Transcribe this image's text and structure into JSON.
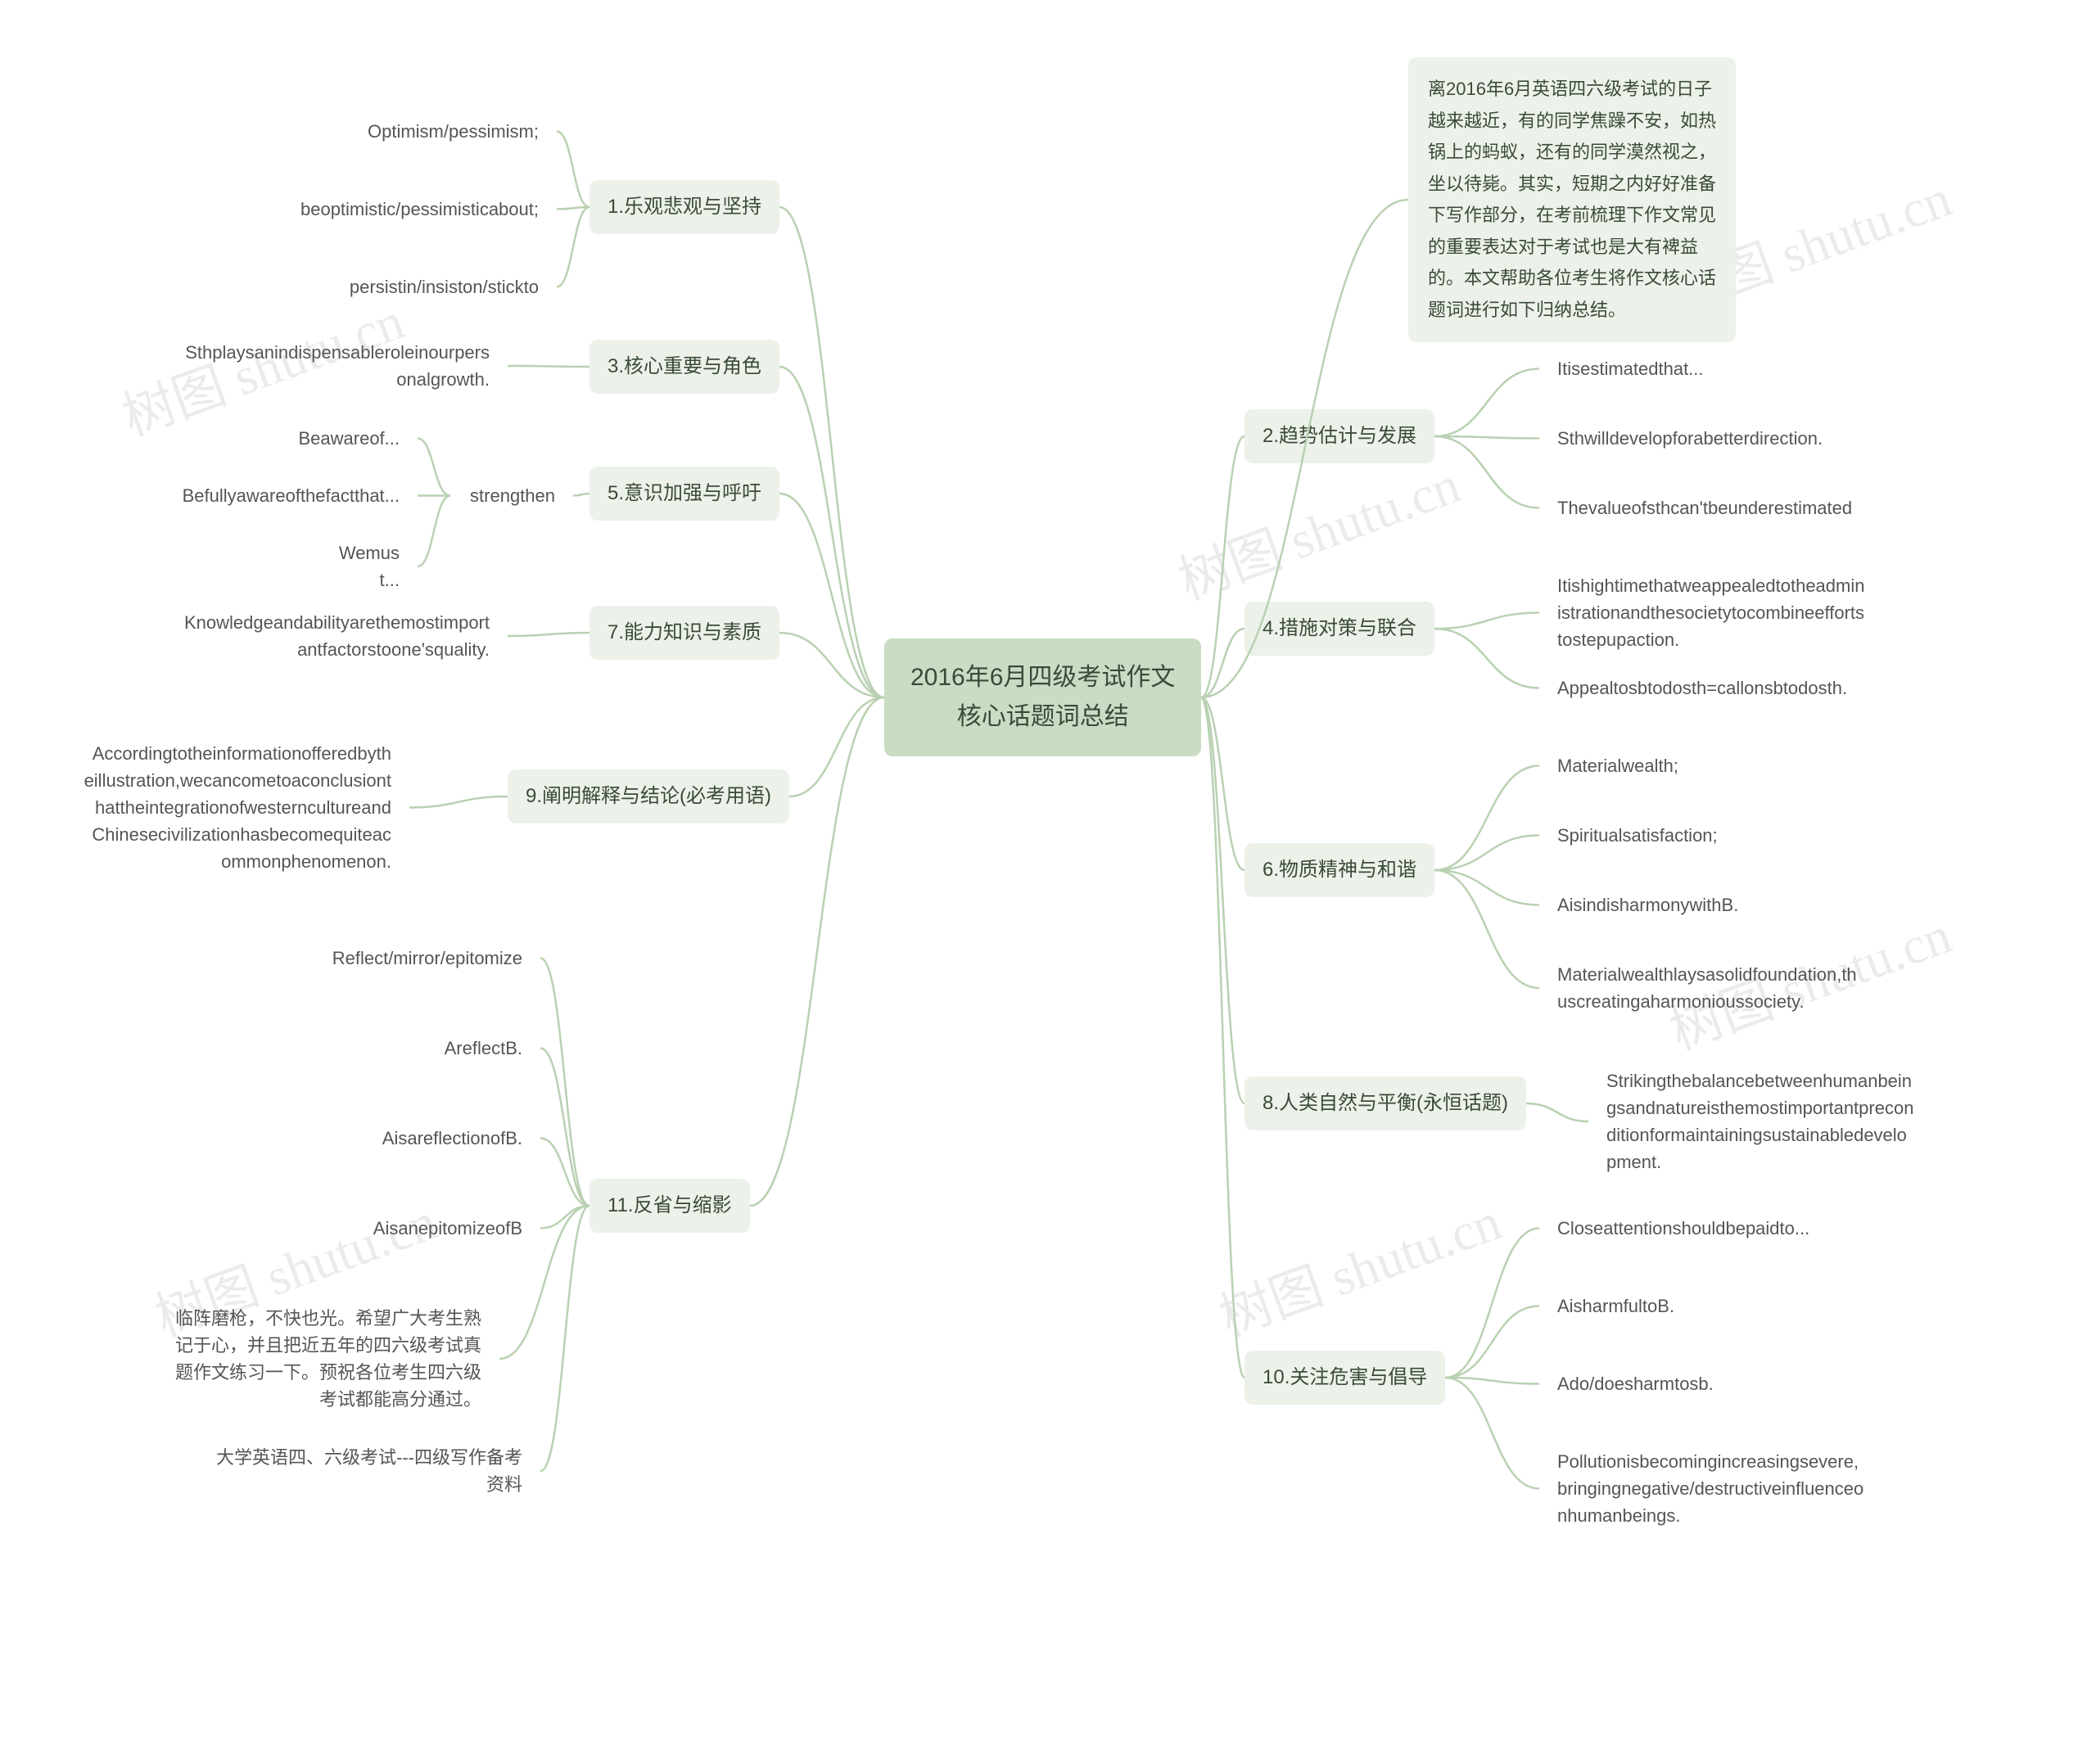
{
  "root": "2016年6月四级考试作文\n核心话题词总结",
  "colors": {
    "root_bg": "#c8ddc3",
    "topic_bg": "#ecf2e9",
    "connector": "#b9d1b2",
    "text": "#3a4a3a",
    "leaf_text": "#555555",
    "page_bg": "#ffffff",
    "watermark": "rgba(0,0,0,0.08)"
  },
  "watermark_text": "树图 shutu.cn",
  "intro": "离2016年6月英语四六级考试的日子越来越近，有的同学焦躁不安，如热锅上的蚂蚁，还有的同学漠然视之，坐以待毙。其实，短期之内好好准备下写作部分，在考前梳理下作文常见的重要表达对于考试也是大有裨益的。本文帮助各位考生将作文核心话题词进行如下归纳总结。",
  "left": {
    "t1": {
      "title": "1.乐观悲观与坚持",
      "leaves": [
        "Optimism/pessimism;",
        "beoptimistic/pessimisticabout;",
        "persistin/insiston/stickto"
      ]
    },
    "t3": {
      "title": "3.核心重要与角色",
      "leaves": [
        "Sthplaysanindispensableroleinourpersonalgrowth."
      ]
    },
    "t5": {
      "title": "5.意识加强与呼吁",
      "mid": "strengthen",
      "leaves": [
        "Beawareof...",
        "Befullyawareofthefactthat...",
        "Wemust..."
      ]
    },
    "t7": {
      "title": "7.能力知识与素质",
      "leaves": [
        "Knowledgeandabilityarethemostimportantfactorstoone'squality."
      ]
    },
    "t9": {
      "title": "9.阐明解释与结论(必考用语)",
      "leaves": [
        "Accordingtotheinformationofferedbytheillustration,wecancometoaconclusionthattheintegrationofwesterncultureandChinesecivilizationhasbecomequiteacommonphenomenon."
      ]
    },
    "t11": {
      "title": "11.反省与缩影",
      "leaves": [
        "Reflect/mirror/epitomize",
        "AreflectB.",
        "AisareflectionofB.",
        "AisanepitomizeofB",
        "临阵磨枪，不快也光。希望广大考生熟记于心，并且把近五年的四六级考试真题作文练习一下。预祝各位考生四六级考试都能高分通过。",
        "大学英语四、六级考试---四级写作备考资料"
      ]
    }
  },
  "right": {
    "t2": {
      "title": "2.趋势估计与发展",
      "leaves": [
        "Itisestimatedthat...",
        "Sthwilldevelopforabetterdirection.",
        "Thevalueofsthcan'tbeunderestimated"
      ]
    },
    "t4": {
      "title": "4.措施对策与联合",
      "leaves": [
        "Itishightimethatweappealedtotheadministrationandthesocietytocombineeffortstostepupaction.",
        "Appealtosbtodosth=callonsbtodosth."
      ]
    },
    "t6": {
      "title": "6.物质精神与和谐",
      "leaves": [
        "Materialwealth;",
        "Spiritualsatisfaction;",
        "AisindisharmonywithB.",
        "Materialwealthlaysasolidfoundation,thuscreatingaharmonioussociety."
      ]
    },
    "t8": {
      "title": "8.人类自然与平衡(永恒话题)",
      "leaves": [
        "Strikingthebalancebetweenhumanbeingsandnatureisthemostimportantpreconditionformaintainingsustainabledevelopment."
      ]
    },
    "t10": {
      "title": "10.关注危害与倡导",
      "leaves": [
        "Closeattentionshouldbepaidto...",
        "AisharmfultoB.",
        "Ado/doesharmtosb.",
        "Pollutionisbecomingincreasingsevere,bringingnegative/destructiveinfluenceonhumanbeings."
      ]
    }
  }
}
